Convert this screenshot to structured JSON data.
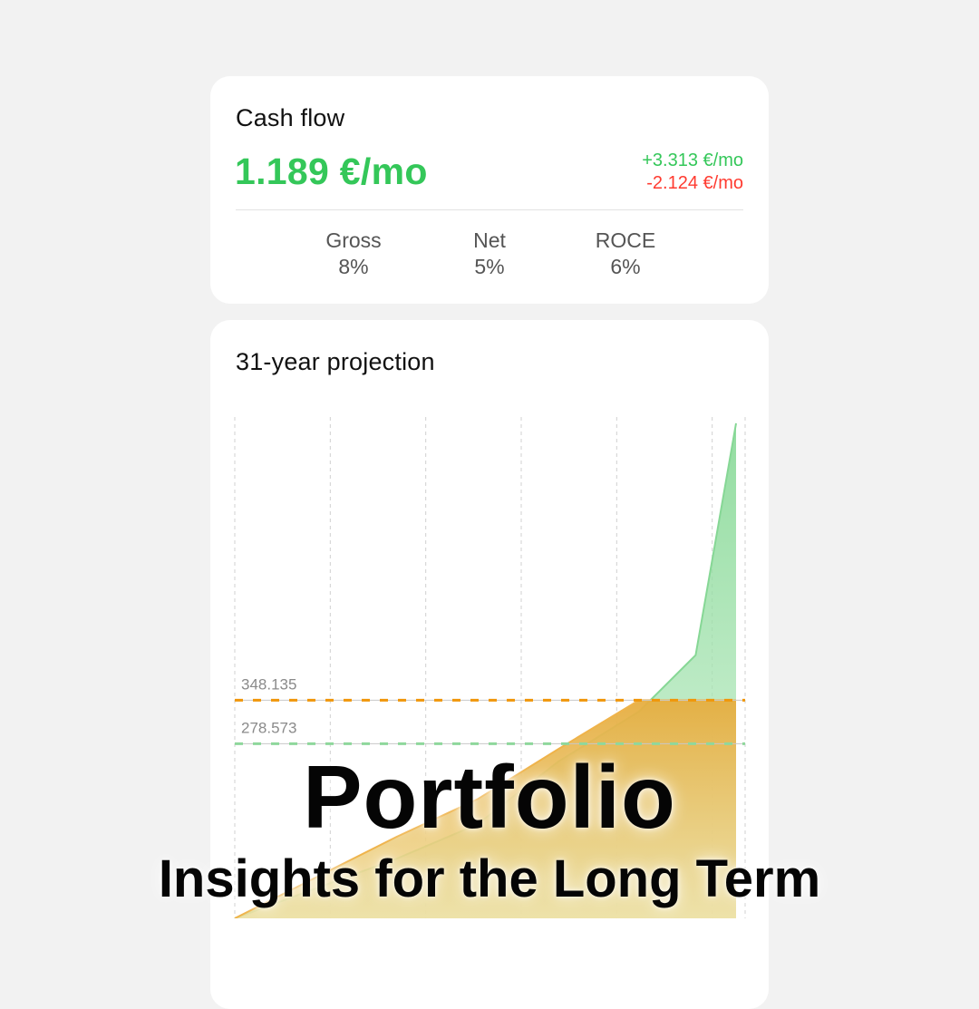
{
  "cash_flow": {
    "title": "Cash flow",
    "value": "1.189 €/mo",
    "income": "+3.313 €/mo",
    "expense": "-2.124 €/mo",
    "metrics": [
      {
        "label": "Gross",
        "value": "8%"
      },
      {
        "label": "Net",
        "value": "5%"
      },
      {
        "label": "ROCE",
        "value": "6%"
      }
    ]
  },
  "projection": {
    "title": "31-year projection"
  },
  "colors": {
    "green": "#34c759",
    "red": "#ff3b30",
    "orange": "#f0960a",
    "green_fill": "#8fdc9e",
    "orange_fill": "#e9b551"
  },
  "chart_data": {
    "type": "area",
    "xlim": [
      0,
      31
    ],
    "ylim": [
      0,
      800000
    ],
    "grid": true,
    "reference_lines": [
      {
        "label": "348.135",
        "value": 348135,
        "color": "orange"
      },
      {
        "label": "278.573",
        "value": 278573,
        "color": "green"
      }
    ],
    "series": [
      {
        "color": "green",
        "x": [
          0,
          10,
          15,
          20,
          25,
          28.5,
          31
        ],
        "y": [
          0,
          95000,
          150000,
          250000,
          330000,
          420000,
          790000
        ]
      },
      {
        "color": "orange",
        "x": [
          0,
          10,
          15,
          20,
          25,
          28.5,
          31
        ],
        "y": [
          0,
          130000,
          190000,
          270000,
          348135,
          348135,
          348135
        ]
      }
    ]
  },
  "overlay": {
    "headline": "Portfolio",
    "subheadline": "Insights for the Long Term"
  }
}
